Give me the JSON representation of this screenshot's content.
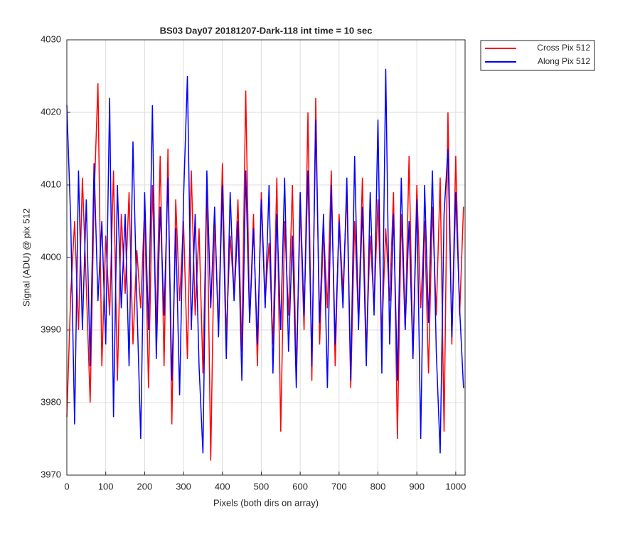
{
  "chart_data": {
    "type": "line",
    "title": "BS03 Day07 20181207-Dark-118 int time = 10 sec",
    "xlabel": "Pixels (both dirs on array)",
    "ylabel": "Signal (ADU) @ pix 512",
    "x": [
      0,
      10,
      20,
      30,
      40,
      50,
      60,
      70,
      80,
      90,
      100,
      110,
      120,
      130,
      140,
      150,
      160,
      170,
      180,
      190,
      200,
      210,
      220,
      230,
      240,
      250,
      260,
      270,
      280,
      290,
      300,
      310,
      320,
      330,
      340,
      350,
      360,
      370,
      380,
      390,
      400,
      410,
      420,
      430,
      440,
      450,
      460,
      470,
      480,
      490,
      500,
      510,
      520,
      530,
      540,
      550,
      560,
      570,
      580,
      590,
      600,
      610,
      620,
      630,
      640,
      650,
      660,
      670,
      680,
      690,
      700,
      710,
      720,
      730,
      740,
      750,
      760,
      770,
      780,
      790,
      800,
      810,
      820,
      830,
      840,
      850,
      860,
      870,
      880,
      890,
      900,
      910,
      920,
      930,
      940,
      950,
      960,
      970,
      980,
      990,
      1000,
      1010,
      1020
    ],
    "series": [
      {
        "name": "Cross Pix 512",
        "color": "#ff0000",
        "values": [
          3978,
          3995,
          4005,
          3990,
          4011,
          3996,
          3980,
          4008,
          4024,
          3985,
          4003,
          3992,
          4012,
          3983,
          4006,
          3995,
          4009,
          3988,
          4001,
          3993,
          4007,
          3982,
          4010,
          3990,
          4014,
          3985,
          4015,
          3977,
          4008,
          3994,
          4005,
          3986,
          4012,
          3992,
          4004,
          3984,
          4010,
          3972,
          4006,
          3990,
          4013,
          3989,
          4003,
          3995,
          4008,
          3987,
          4023,
          3991,
          4006,
          3985,
          4009,
          3994,
          4002,
          3988,
          4011,
          3976,
          4005,
          3992,
          4010,
          3984,
          4007,
          3990,
          4020,
          3983,
          4022,
          3988,
          4004,
          3993,
          4012,
          3985,
          4006,
          3995,
          4009,
          3982,
          4005,
          3991,
          4011,
          3987,
          4003,
          3993,
          4008,
          3989,
          4004,
          3994,
          4009,
          3975,
          4006,
          3990,
          4014,
          3986,
          4010,
          3993,
          4005,
          3984,
          4007,
          3992,
          4011,
          3976,
          4020,
          3988,
          4014,
          3992,
          4007
        ]
      },
      {
        "name": "Along Pix 512",
        "color": "#0000ff",
        "values": [
          4021,
          4005,
          3977,
          4012,
          3990,
          4008,
          3985,
          4013,
          3994,
          4005,
          3988,
          4022,
          3978,
          4010,
          3993,
          4006,
          3985,
          4016,
          3994,
          3975,
          4009,
          3990,
          4021,
          3986,
          4007,
          3992,
          4011,
          3983,
          4004,
          3981,
          4008,
          4025,
          3990,
          4006,
          3985,
          3973,
          4012,
          3993,
          4007,
          3989,
          4010,
          3986,
          4009,
          3994,
          4005,
          3983,
          4012,
          3991,
          4004,
          3988,
          4008,
          3993,
          4010,
          3984,
          4006,
          3990,
          4011,
          3987,
          4003,
          3982,
          4009,
          3992,
          4012,
          3985,
          4019,
          3991,
          4006,
          3982,
          4010,
          3988,
          4005,
          3993,
          4011,
          3983,
          4014,
          3990,
          4007,
          3985,
          4009,
          3992,
          4019,
          3984,
          4026,
          3988,
          4006,
          3983,
          4011,
          3990,
          4005,
          3986,
          4008,
          3975,
          4010,
          3991,
          4012,
          3987,
          3973,
          4006,
          4015,
          3989,
          4009,
          3993,
          3982
        ]
      }
    ],
    "xlim": [
      0,
      1024
    ],
    "xticks": [
      0,
      100,
      200,
      300,
      400,
      500,
      600,
      700,
      800,
      900,
      1000
    ],
    "ylim": [
      3970,
      4030
    ],
    "yticks": [
      3970,
      3980,
      3990,
      4000,
      4010,
      4020,
      4030
    ],
    "grid": true,
    "legend": "northeastoutside"
  }
}
